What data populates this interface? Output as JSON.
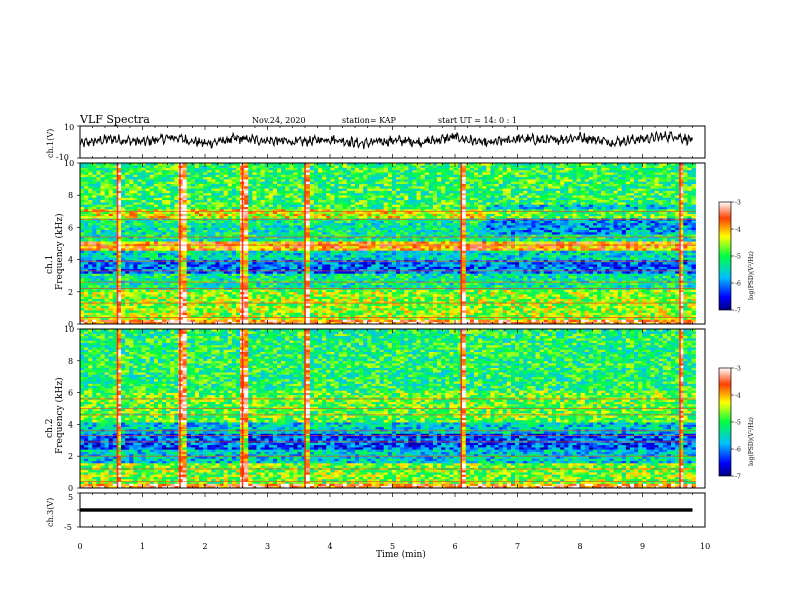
{
  "header": {
    "title": "VLF Spectra",
    "date": "Nov.24, 2020",
    "station": "station= KAP",
    "start": "start  UT =   14: 0  : 1"
  },
  "chart_data": [
    {
      "type": "line",
      "ylabel": "ch.1(V)",
      "ylim": [
        -10,
        10
      ],
      "yticks": [
        "10",
        "-10"
      ],
      "xlim": [
        0,
        10
      ],
      "series": [
        {
          "description_shape": "noisy waveform oscillating around 0 V, mostly between -5 and +5 V",
          "x": [
            0.0,
            0.5,
            1.0,
            1.5,
            2.0,
            2.5,
            3.0,
            3.5,
            4.0,
            4.5,
            5.0,
            5.5,
            6.0,
            6.5,
            7.0,
            7.5,
            8.0,
            8.5,
            9.0,
            9.5,
            9.8
          ],
          "values": [
            -1,
            2,
            0,
            3,
            -1,
            2,
            1,
            0,
            2,
            -1,
            1,
            0,
            3,
            -1,
            2,
            1,
            3,
            0,
            2,
            4,
            1
          ]
        }
      ]
    },
    {
      "type": "heatmap",
      "ylabel": "ch.1\nFrequency (kHz)",
      "ylim": [
        0,
        10
      ],
      "yticks": [
        "0",
        "2",
        "4",
        "6",
        "8",
        "10"
      ],
      "xlim": [
        0,
        10
      ],
      "colorbar": {
        "label": "log(PSD)(V²/Hz)",
        "range": [
          -7,
          -3
        ],
        "ticks": [
          "-3",
          "-4",
          "-5",
          "-6",
          "-7"
        ]
      },
      "bands_khz": [
        {
          "from": 0.0,
          "to": 0.3,
          "level": -3.6
        },
        {
          "from": 0.3,
          "to": 2.2,
          "level": -4.6
        },
        {
          "from": 2.2,
          "to": 3.2,
          "level": -5.3
        },
        {
          "from": 3.2,
          "to": 4.0,
          "level": -6.1
        },
        {
          "from": 4.0,
          "to": 4.6,
          "level": -5.5
        },
        {
          "from": 4.6,
          "to": 5.2,
          "level": -3.9
        },
        {
          "from": 5.2,
          "to": 6.6,
          "level": -5.3
        },
        {
          "from": 6.6,
          "to": 7.2,
          "level": -4.3
        },
        {
          "from": 7.2,
          "to": 10.0,
          "level": -5.0
        }
      ],
      "bursts_min": [
        0.6,
        1.6,
        2.6,
        3.6,
        6.1,
        9.6
      ]
    },
    {
      "type": "heatmap",
      "ylabel": "ch.2\nFrequency (kHz)",
      "ylim": [
        0,
        10
      ],
      "yticks": [
        "0",
        "2",
        "4",
        "6",
        "8",
        "10"
      ],
      "xlim": [
        0,
        10
      ],
      "colorbar": {
        "label": "log(PSD)(V²/Hz)",
        "range": [
          -7,
          -3
        ],
        "ticks": [
          "-3",
          "-4",
          "-5",
          "-6",
          "-7"
        ]
      },
      "bands_khz": [
        {
          "from": 0.0,
          "to": 0.3,
          "level": -3.6
        },
        {
          "from": 0.3,
          "to": 1.6,
          "level": -4.7
        },
        {
          "from": 1.6,
          "to": 2.4,
          "level": -5.6
        },
        {
          "from": 2.4,
          "to": 3.4,
          "level": -6.2
        },
        {
          "from": 3.4,
          "to": 4.2,
          "level": -5.6
        },
        {
          "from": 4.2,
          "to": 6.2,
          "level": -4.8
        },
        {
          "from": 6.2,
          "to": 10.0,
          "level": -5.1
        }
      ],
      "bursts_min": [
        0.6,
        1.6,
        2.6,
        3.6,
        6.1,
        9.6
      ]
    },
    {
      "type": "line",
      "ylabel": "ch.3(V)",
      "ylim": [
        -5,
        5
      ],
      "yticks": [
        "5",
        "0",
        "-5"
      ],
      "xlim": [
        0,
        10
      ],
      "xlabel": "Time (min)",
      "xticks": [
        "0",
        "1",
        "2",
        "3",
        "4",
        "5",
        "6",
        "7",
        "8",
        "9",
        "10"
      ],
      "series": [
        {
          "x": [
            0.0,
            9.8
          ],
          "values": [
            0,
            0
          ],
          "thickness_v": 1.0
        }
      ]
    }
  ]
}
